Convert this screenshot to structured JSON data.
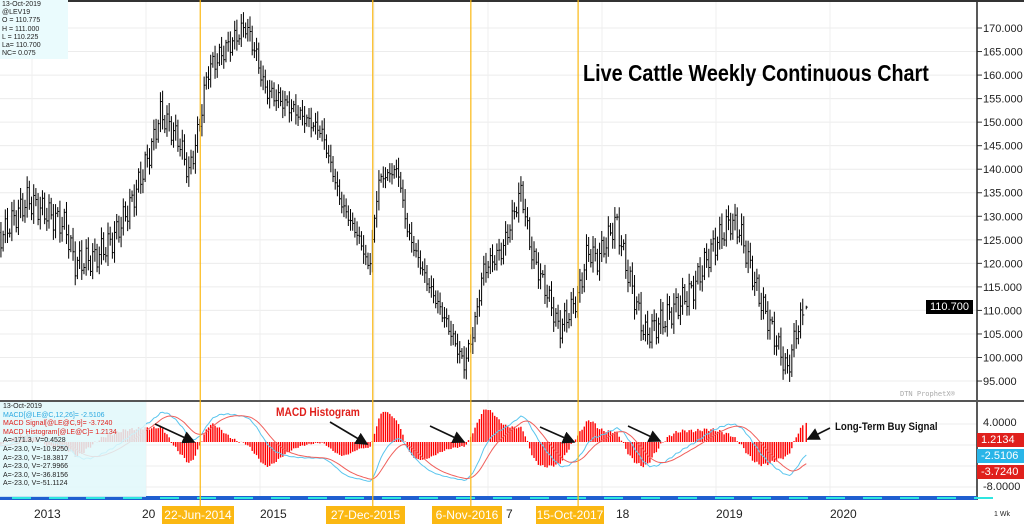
{
  "info_box": {
    "date": "13-Oct-2019",
    "symbol": "@LEV19",
    "open": "O = 110.775",
    "high": "H = 111.000",
    "low": "L = 110.225",
    "last": "La= 110.700",
    "net_change": "NC= 0.075"
  },
  "title": "Live Cattle Weekly Continuous Chart",
  "watermark": "DTN ProphetX®",
  "last_price_label": "110.700",
  "macd_panel": {
    "date": "13-Oct-2019",
    "macd": "MACD[@LE@C,12,26]= -2.5106",
    "signal": "MACD Signal[@LE@C,9]= -3.7240",
    "histogram": "MACD Histogram[@LE@C]= 1.2134",
    "readouts": [
      "A=-171.3, V=0.4528",
      "A=-23.0, V=-10.9250",
      "A=-23.0, V=-18.3817",
      "A=-23.0, V=-27.9966",
      "A=-23.0, V=-36.8156",
      "A=-23.0, V=-51.1124"
    ],
    "annotation_histogram": "MACD Histogram",
    "annotation_buy": "Long-Term Buy Signal",
    "value_boxes": {
      "histogram": "1.2134",
      "macd": "-2.5106",
      "signal": "-3.7240"
    },
    "axis_ticks": [
      "4.0000",
      "-8.0000"
    ]
  },
  "event_labels": [
    "22-Jun-2014",
    "27-Dec-2015",
    "6-Nov-2016",
    "15-Oct-2017"
  ],
  "x_tick_labels": [
    "2013",
    "20",
    "2015",
    "7",
    "18",
    "2019",
    "2020"
  ],
  "interval_label": "1 Wk",
  "colors": {
    "event_line": "#fbb812",
    "macd": "#5bc6ee",
    "signal": "#f0605c",
    "histogram": "#ff0000",
    "bars": "#000000"
  },
  "chart_data": {
    "type": "bar",
    "subtype": "ohlc-weekly",
    "title": "Live Cattle Weekly Continuous Chart",
    "ylim": [
      93,
      174
    ],
    "y_ticks": [
      95,
      100,
      105,
      110,
      115,
      120,
      125,
      130,
      135,
      140,
      145,
      150,
      155,
      160,
      165,
      170
    ],
    "x_ticks": [
      "2013",
      "2015",
      "2019",
      "2020"
    ],
    "grid": true,
    "approx_close_path": [
      [
        "2012-09",
        125
      ],
      [
        "2012-12",
        133.5
      ],
      [
        "2013-04",
        128
      ],
      [
        "2013-05",
        120
      ],
      [
        "2013-07",
        121
      ],
      [
        "2013-09",
        125
      ],
      [
        "2013-11",
        133
      ],
      [
        "2014-01",
        144
      ],
      [
        "2014-02",
        152
      ],
      [
        "2014-04",
        146
      ],
      [
        "2014-05",
        139
      ],
      [
        "2014-06",
        148
      ],
      [
        "2014-07",
        161
      ],
      [
        "2014-11",
        170.5
      ],
      [
        "2014-12",
        165
      ],
      [
        "2015-01",
        157
      ],
      [
        "2015-04",
        152.6
      ],
      [
        "2015-07",
        148
      ],
      [
        "2015-09",
        133
      ],
      [
        "2015-11",
        125
      ],
      [
        "2015-12",
        118.6
      ],
      [
        "2016-01",
        137.7
      ],
      [
        "2016-03",
        140
      ],
      [
        "2016-04",
        127
      ],
      [
        "2016-06",
        116.5
      ],
      [
        "2016-08",
        108
      ],
      [
        "2016-10",
        98.4
      ],
      [
        "2016-11",
        105.8
      ],
      [
        "2016-12",
        118.6
      ],
      [
        "2017-02",
        122.8
      ],
      [
        "2017-04",
        135.6
      ],
      [
        "2017-05",
        122.8
      ],
      [
        "2017-07",
        112
      ],
      [
        "2017-08",
        105.8
      ],
      [
        "2017-10",
        113
      ],
      [
        "2017-11",
        122.8
      ],
      [
        "2017-12",
        120.7
      ],
      [
        "2018-02",
        129
      ],
      [
        "2018-03",
        119.6
      ],
      [
        "2018-05",
        104.8
      ],
      [
        "2018-07",
        108
      ],
      [
        "2018-10",
        114.3
      ],
      [
        "2018-12",
        122.8
      ],
      [
        "2019-02",
        129
      ],
      [
        "2019-03",
        127
      ],
      [
        "2019-05",
        113
      ],
      [
        "2019-06",
        108
      ],
      [
        "2019-08",
        97
      ],
      [
        "2019-09",
        106
      ],
      [
        "2019-10",
        110.7
      ]
    ],
    "last_bar": {
      "open": 110.775,
      "high": 111.0,
      "low": 110.225,
      "close": 110.7
    },
    "event_dates": [
      "2014-06-22",
      "2015-12-27",
      "2016-11-06",
      "2017-10-15"
    ],
    "macd": {
      "params": [
        12,
        26,
        9
      ],
      "ylim": [
        -10,
        6
      ],
      "last_macd": -2.5106,
      "last_signal": -3.724,
      "last_histogram": 1.2134
    }
  }
}
